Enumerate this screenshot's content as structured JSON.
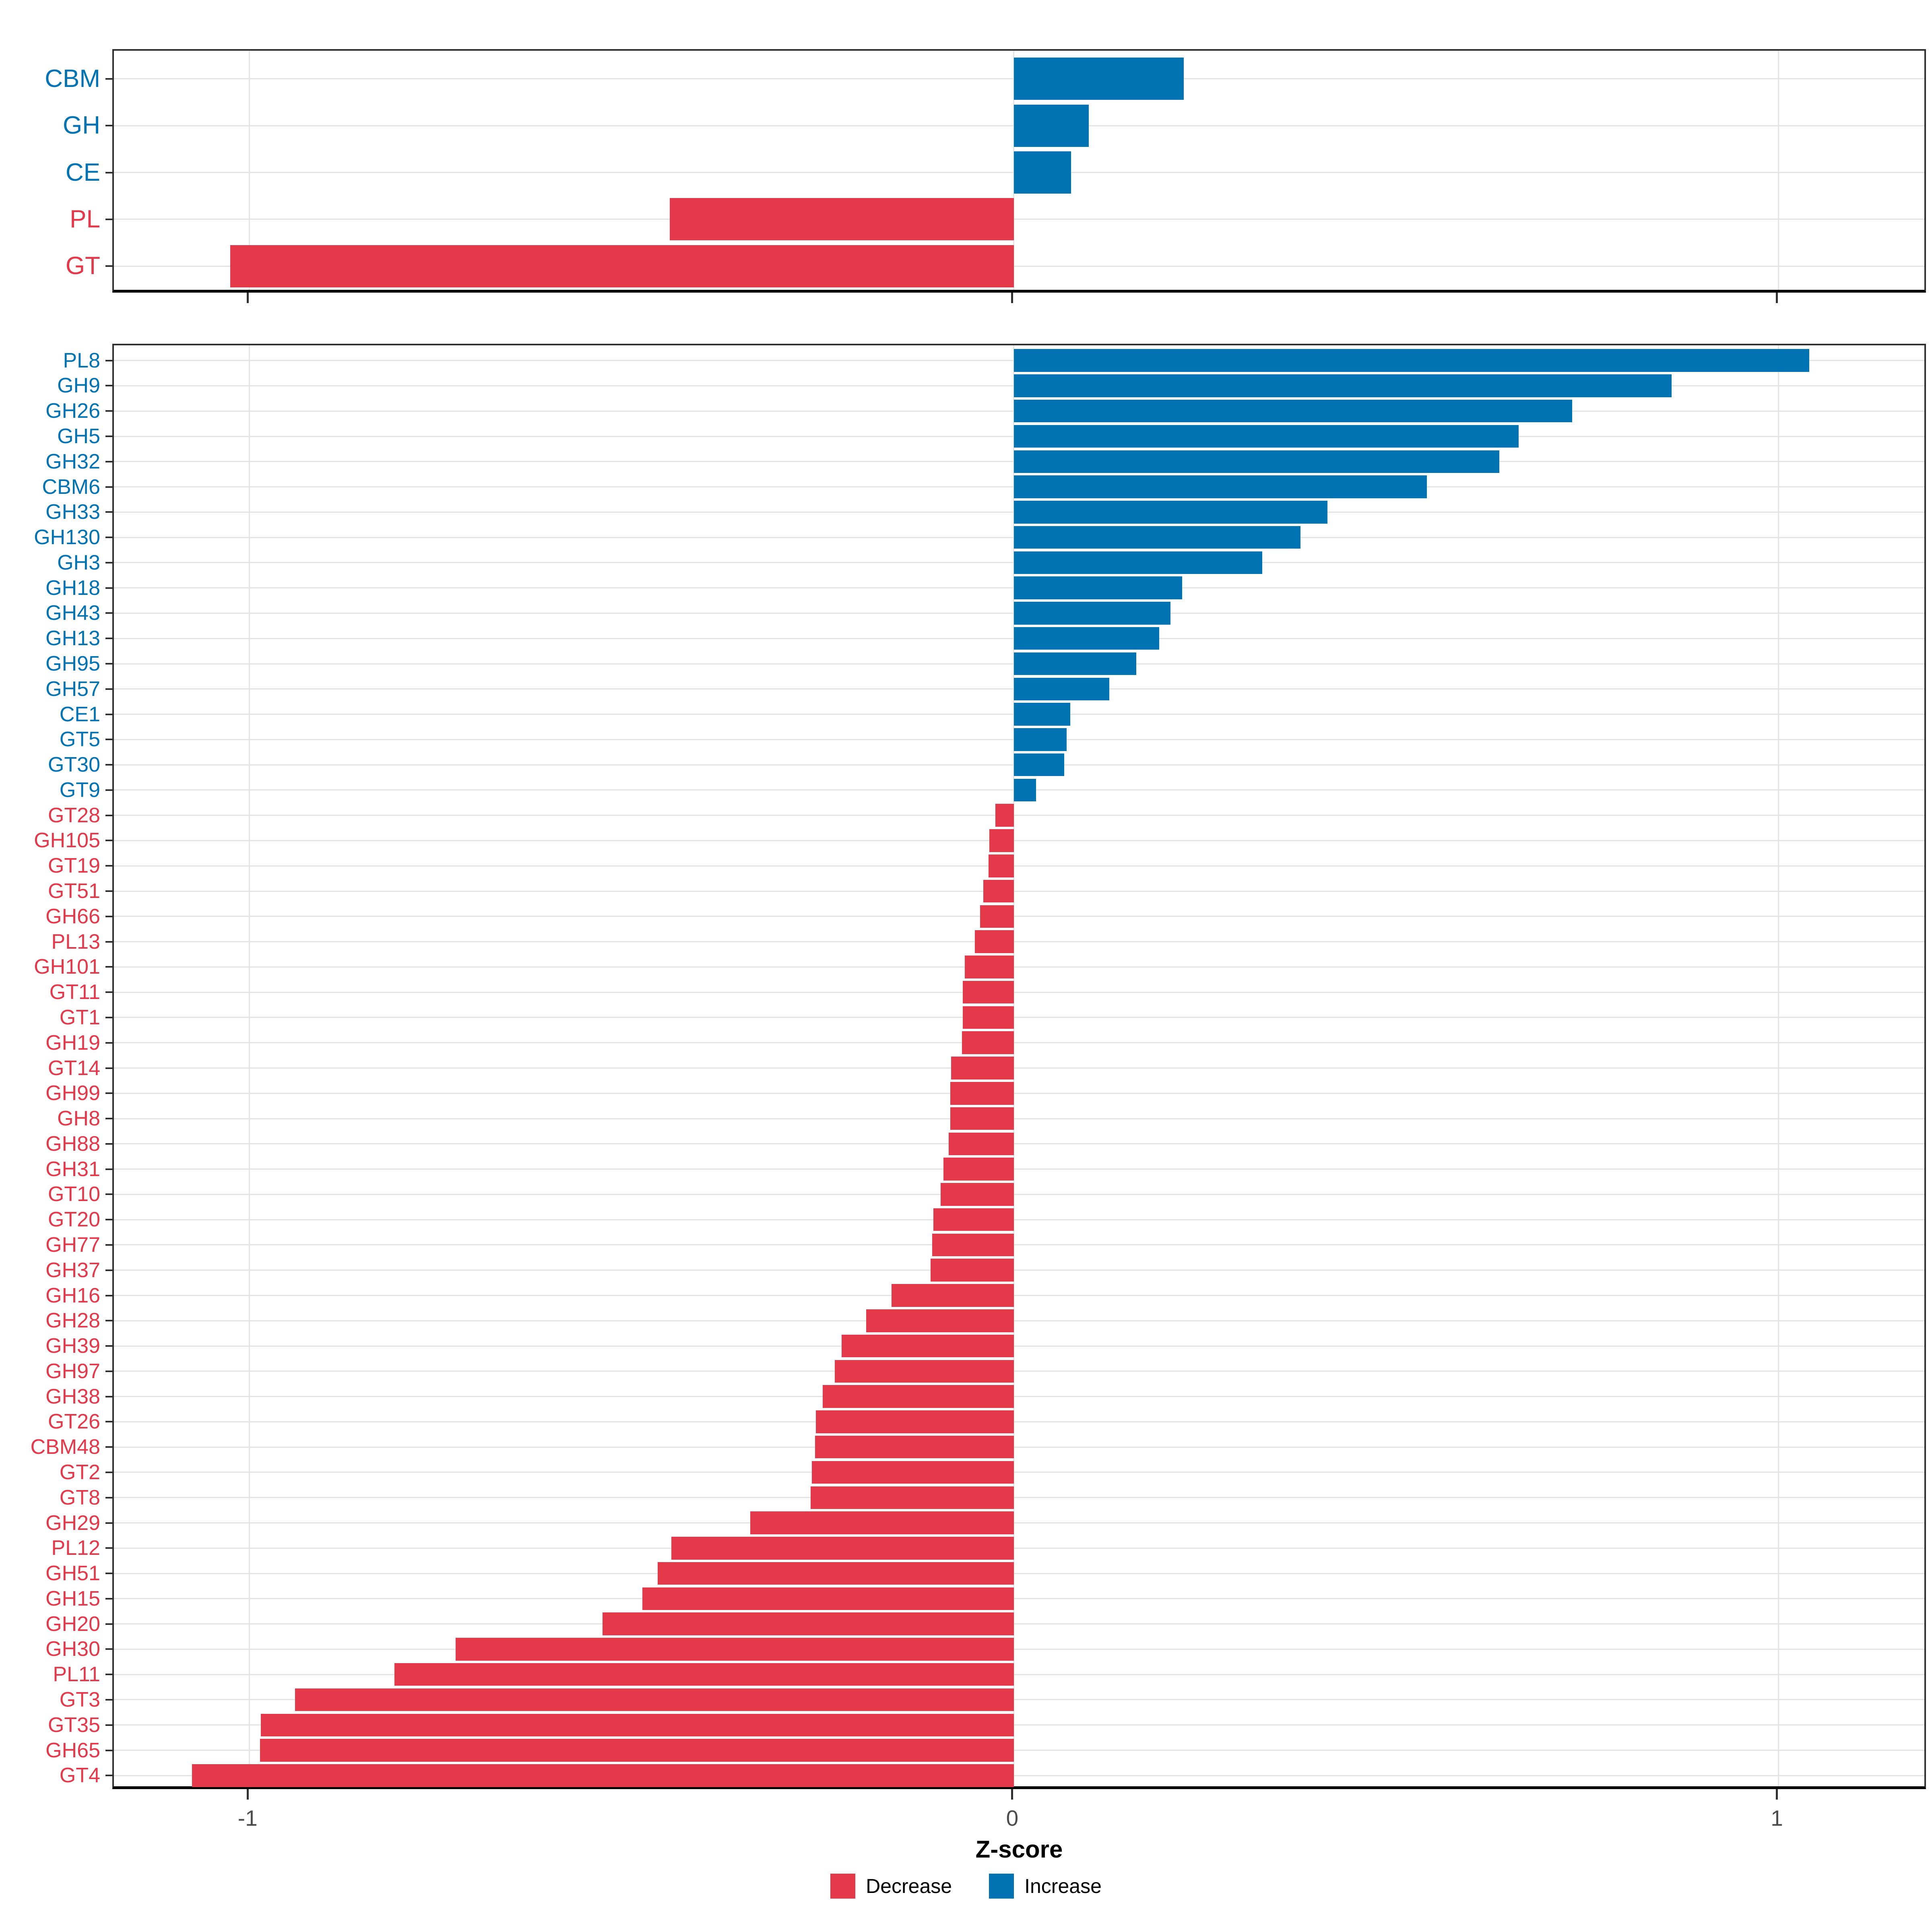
{
  "figure": {
    "xlabel": "Z-score",
    "legend": [
      {
        "label": "Decrease",
        "direction": "decrease",
        "color": "#E4394A"
      },
      {
        "label": "Increase",
        "direction": "increase",
        "color": "#0173B3"
      }
    ],
    "colors": {
      "decrease": "#E4394A",
      "increase": "#0173B3",
      "grid": "#E4E4E4",
      "tick_label": "#4D4D4D",
      "panel_border": "#303030",
      "axis_line": "#000000"
    },
    "legend_position": "bottom"
  },
  "chart_data": [
    {
      "type": "bar",
      "orientation": "horizontal",
      "panel": "overview",
      "title": "",
      "xlabel": "Z-score",
      "ylabel": "",
      "xlim": [
        -1.177,
        1.195
      ],
      "xticks": [
        -1,
        0,
        1
      ],
      "xtick_labels": [
        "-1",
        "0",
        "1"
      ],
      "xtick_labels_shown": false,
      "grid": true,
      "categories": [
        "CBM",
        "GH",
        "CE",
        "PL",
        "GT"
      ],
      "values": [
        0.222,
        0.098,
        0.075,
        -0.45,
        -1.025
      ],
      "directions": [
        "increase",
        "increase",
        "increase",
        "decrease",
        "decrease"
      ]
    },
    {
      "type": "bar",
      "orientation": "horizontal",
      "panel": "families",
      "title": "",
      "xlabel": "Z-score",
      "ylabel": "",
      "xlim": [
        -1.177,
        1.195
      ],
      "xticks": [
        -1,
        0,
        1
      ],
      "xtick_labels": [
        "-1",
        "0",
        "1"
      ],
      "xtick_labels_shown": true,
      "grid": true,
      "categories": [
        "PL8",
        "GH9",
        "GH26",
        "GH5",
        "GH32",
        "CBM6",
        "GH33",
        "GH130",
        "GH3",
        "GH18",
        "GH43",
        "GH13",
        "GH95",
        "GH57",
        "CE1",
        "GT5",
        "GT30",
        "GT9",
        "GT28",
        "GH105",
        "GT19",
        "GT51",
        "GH66",
        "PL13",
        "GH101",
        "GT11",
        "GT1",
        "GH19",
        "GT14",
        "GH99",
        "GH8",
        "GH88",
        "GH31",
        "GT10",
        "GT20",
        "GH77",
        "GH37",
        "GH16",
        "GH28",
        "GH39",
        "GH97",
        "GH38",
        "GT26",
        "CBM48",
        "GT2",
        "GT8",
        "GH29",
        "PL12",
        "GH51",
        "GH15",
        "GH20",
        "GH30",
        "PL11",
        "GT3",
        "GT35",
        "GH65",
        "GT4"
      ],
      "values": [
        1.04,
        0.86,
        0.73,
        0.66,
        0.635,
        0.54,
        0.41,
        0.375,
        0.325,
        0.22,
        0.205,
        0.19,
        0.16,
        0.125,
        0.074,
        0.069,
        0.066,
        0.029,
        -0.024,
        -0.032,
        -0.033,
        -0.04,
        -0.044,
        -0.051,
        -0.064,
        -0.067,
        -0.067,
        -0.068,
        -0.082,
        -0.083,
        -0.083,
        -0.085,
        -0.092,
        -0.096,
        -0.105,
        -0.107,
        -0.109,
        -0.16,
        -0.193,
        -0.225,
        -0.234,
        -0.25,
        -0.259,
        -0.26,
        -0.264,
        -0.266,
        -0.345,
        -0.448,
        -0.466,
        -0.486,
        -0.538,
        -0.73,
        -0.81,
        -0.94,
        -0.985,
        -0.986,
        -1.075
      ],
      "directions": [
        "increase",
        "increase",
        "increase",
        "increase",
        "increase",
        "increase",
        "increase",
        "increase",
        "increase",
        "increase",
        "increase",
        "increase",
        "increase",
        "increase",
        "increase",
        "increase",
        "increase",
        "increase",
        "decrease",
        "decrease",
        "decrease",
        "decrease",
        "decrease",
        "decrease",
        "decrease",
        "decrease",
        "decrease",
        "decrease",
        "decrease",
        "decrease",
        "decrease",
        "decrease",
        "decrease",
        "decrease",
        "decrease",
        "decrease",
        "decrease",
        "decrease",
        "decrease",
        "decrease",
        "decrease",
        "decrease",
        "decrease",
        "decrease",
        "decrease",
        "decrease",
        "decrease",
        "decrease",
        "decrease",
        "decrease",
        "decrease",
        "decrease",
        "decrease",
        "decrease",
        "decrease",
        "decrease",
        "decrease"
      ]
    }
  ]
}
